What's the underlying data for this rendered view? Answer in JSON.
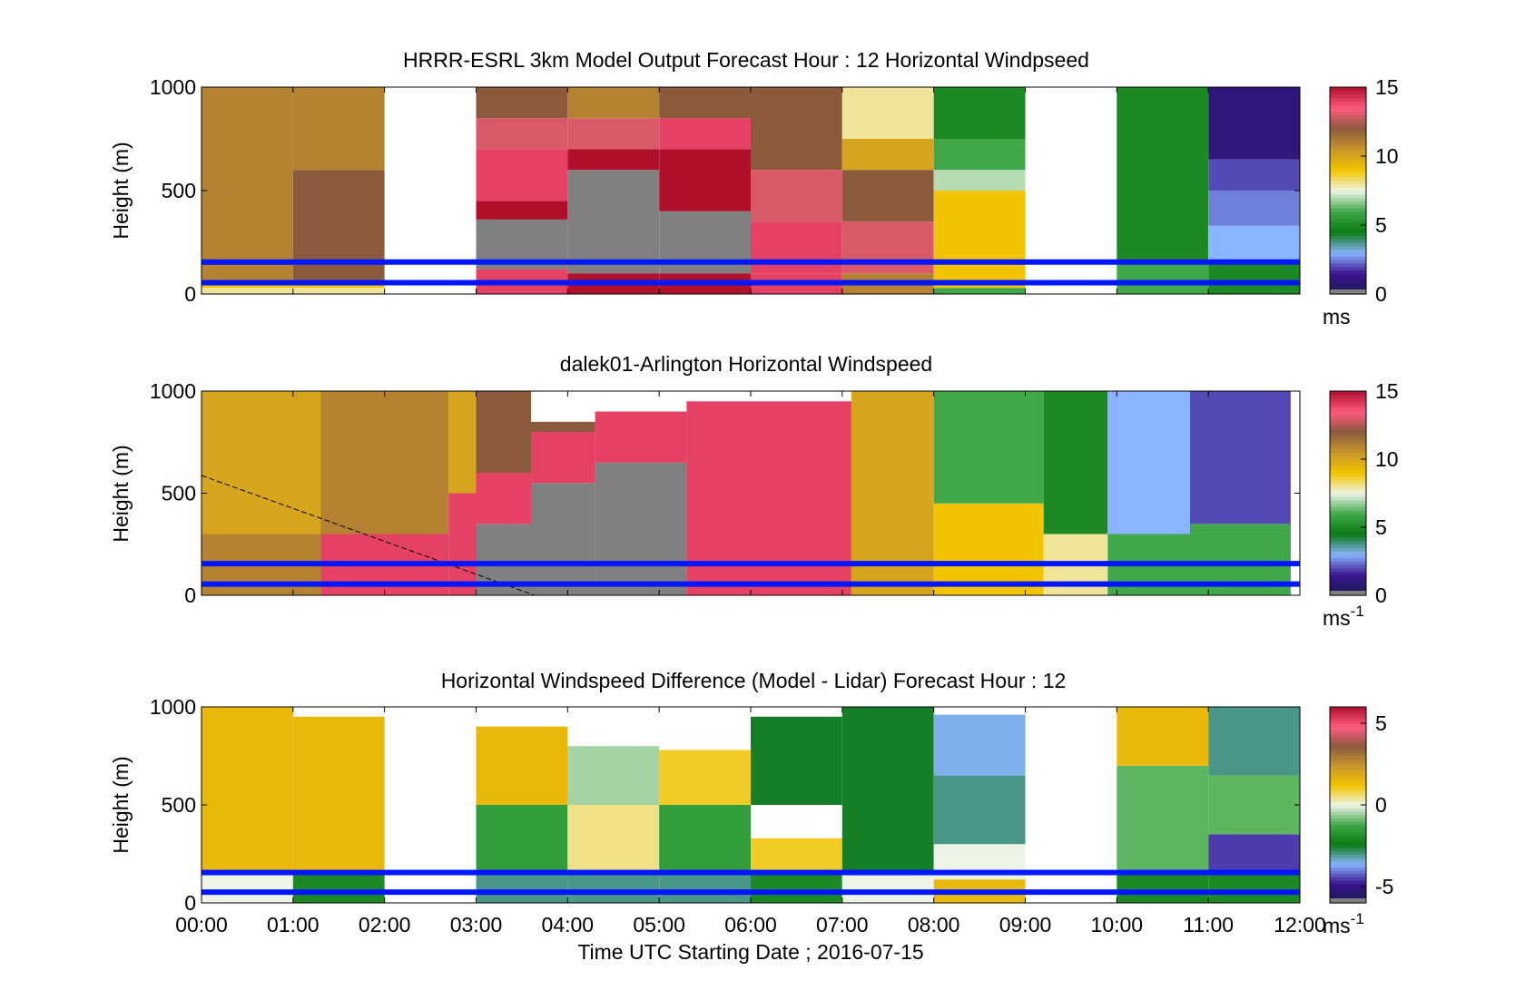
{
  "figure": {
    "xlabel": "Time UTC  Starting Date ; 2016-07-15",
    "x_ticks": [
      "00:00",
      "01:00",
      "02:00",
      "03:00",
      "04:00",
      "05:00",
      "06:00",
      "07:00",
      "08:00",
      "09:00",
      "10:00",
      "11:00",
      "12:00"
    ]
  },
  "colors": {
    "reference_line": "#0016ff",
    "gray": "#808080",
    "colormap_stops": [
      "#1a1a50",
      "#3a1490",
      "#8ab4ff",
      "#0a7a14",
      "#40a848",
      "#eef4e6",
      "#f2c400",
      "#c8962c",
      "#8b5a3c",
      "#ff5a80",
      "#b0102c"
    ]
  },
  "chart_data": [
    {
      "type": "heatmap",
      "title": "HRRR-ESRL 3km Model Output   Forecast Hour : 12 Horizontal Windpseed",
      "ylabel": "Height (m)",
      "ylim": [
        0,
        1000
      ],
      "y_ticks": [
        "0",
        "500",
        "1000"
      ],
      "colorbar": {
        "range": [
          0,
          15
        ],
        "ticks": [
          "0",
          "5",
          "10",
          "15"
        ],
        "unit": "ms"
      },
      "reference_lines_m": [
        55,
        155
      ],
      "x_hours": [
        0,
        1,
        2,
        3,
        4,
        5,
        6,
        7,
        8,
        9,
        10,
        11,
        12
      ],
      "columns": [
        {
          "start": 0,
          "end": 1,
          "segments": [
            [
              0,
              30,
              8
            ],
            [
              30,
              60,
              9
            ],
            [
              60,
              1000,
              11
            ]
          ]
        },
        {
          "start": 1,
          "end": 2,
          "segments": [
            [
              0,
              30,
              8
            ],
            [
              30,
              60,
              9
            ],
            [
              60,
              600,
              12
            ],
            [
              600,
              1000,
              11
            ]
          ]
        },
        {
          "start": 3,
          "end": 4,
          "segments": [
            [
              0,
              120,
              14
            ],
            [
              120,
              360,
              "gray"
            ],
            [
              360,
              450,
              15
            ],
            [
              450,
              700,
              14
            ],
            [
              700,
              850,
              13
            ],
            [
              850,
              1000,
              12
            ]
          ]
        },
        {
          "start": 4,
          "end": 5,
          "segments": [
            [
              0,
              100,
              15
            ],
            [
              100,
              600,
              "gray"
            ],
            [
              600,
              700,
              15
            ],
            [
              700,
              850,
              13
            ],
            [
              850,
              1000,
              11
            ]
          ]
        },
        {
          "start": 5,
          "end": 6,
          "segments": [
            [
              0,
              100,
              15
            ],
            [
              100,
              400,
              "gray"
            ],
            [
              400,
              700,
              15
            ],
            [
              700,
              850,
              14
            ],
            [
              850,
              1000,
              12
            ]
          ]
        },
        {
          "start": 6,
          "end": 7,
          "segments": [
            [
              0,
              100,
              14
            ],
            [
              100,
              350,
              14
            ],
            [
              350,
              600,
              13
            ],
            [
              600,
              1000,
              12
            ]
          ]
        },
        {
          "start": 7,
          "end": 8,
          "segments": [
            [
              0,
              100,
              11
            ],
            [
              100,
              350,
              13
            ],
            [
              350,
              600,
              12
            ],
            [
              600,
              750,
              10
            ],
            [
              750,
              1000,
              8
            ]
          ]
        },
        {
          "start": 8,
          "end": 9,
          "segments": [
            [
              0,
              30,
              6
            ],
            [
              30,
              150,
              9
            ],
            [
              150,
              500,
              9
            ],
            [
              500,
              600,
              7
            ],
            [
              600,
              750,
              6
            ],
            [
              750,
              1000,
              5
            ]
          ]
        },
        {
          "start": 10,
          "end": 11,
          "segments": [
            [
              0,
              150,
              6
            ],
            [
              150,
              1000,
              5
            ]
          ]
        },
        {
          "start": 11,
          "end": 12,
          "segments": [
            [
              0,
              150,
              5
            ],
            [
              150,
              330,
              3
            ],
            [
              330,
              500,
              2.5
            ],
            [
              500,
              650,
              2
            ],
            [
              650,
              1000,
              1
            ]
          ]
        }
      ]
    },
    {
      "type": "heatmap",
      "title": "dalek01-Arlington  Horizontal Windspeed",
      "ylabel": "Height (m)",
      "ylim": [
        0,
        1000
      ],
      "y_ticks": [
        "0",
        "500",
        "1000"
      ],
      "colorbar": {
        "range": [
          0,
          15
        ],
        "ticks": [
          "0",
          "5",
          "10",
          "15"
        ],
        "unit": "ms",
        "unit_sup": "-1"
      },
      "reference_lines_m": [
        55,
        155
      ],
      "x_hours": [
        0,
        1,
        2,
        3,
        4,
        5,
        6,
        7,
        8,
        9,
        10,
        11,
        12
      ],
      "columns": [
        {
          "start": 0,
          "end": 1.3,
          "segments": [
            [
              0,
              300,
              11
            ],
            [
              300,
              1000,
              10
            ]
          ]
        },
        {
          "start": 1.3,
          "end": 2.7,
          "segments": [
            [
              0,
              300,
              14
            ],
            [
              300,
              1000,
              11
            ]
          ]
        },
        {
          "start": 2.7,
          "end": 3.0,
          "segments": [
            [
              0,
              500,
              14
            ],
            [
              500,
              1000,
              10
            ]
          ]
        },
        {
          "start": 3.0,
          "end": 3.6,
          "segments": [
            [
              0,
              350,
              "gray"
            ],
            [
              350,
              600,
              14
            ],
            [
              600,
              1000,
              12
            ]
          ]
        },
        {
          "start": 3.6,
          "end": 4.3,
          "segments": [
            [
              0,
              550,
              "gray"
            ],
            [
              550,
              800,
              14
            ],
            [
              800,
              850,
              12
            ]
          ]
        },
        {
          "start": 4.3,
          "end": 5.3,
          "segments": [
            [
              0,
              650,
              "gray"
            ],
            [
              650,
              900,
              14
            ]
          ]
        },
        {
          "start": 5.3,
          "end": 7.1,
          "segments": [
            [
              0,
              950,
              14
            ]
          ]
        },
        {
          "start": 7.1,
          "end": 8.0,
          "segments": [
            [
              0,
              1000,
              10
            ]
          ]
        },
        {
          "start": 8.0,
          "end": 9.2,
          "segments": [
            [
              0,
              450,
              9
            ],
            [
              450,
              1000,
              6
            ]
          ]
        },
        {
          "start": 9.2,
          "end": 9.9,
          "segments": [
            [
              0,
              300,
              8
            ],
            [
              300,
              1000,
              5
            ]
          ]
        },
        {
          "start": 9.9,
          "end": 10.8,
          "segments": [
            [
              0,
              300,
              6
            ],
            [
              300,
              1000,
              3
            ]
          ]
        },
        {
          "start": 10.8,
          "end": 11.9,
          "segments": [
            [
              0,
              350,
              6
            ],
            [
              350,
              1000,
              2
            ]
          ]
        }
      ]
    },
    {
      "type": "heatmap",
      "title": "Horizontal Windspeed Difference (Model - Lidar) Forecast Hour : 12",
      "ylabel": "Height (m)",
      "ylim": [
        0,
        1000
      ],
      "y_ticks": [
        "0",
        "500",
        "1000"
      ],
      "colorbar": {
        "range": [
          -6,
          6
        ],
        "ticks": [
          "-5",
          "0",
          "5"
        ],
        "unit": "ms",
        "unit_sup": "-1"
      },
      "reference_lines_m": [
        55,
        155
      ],
      "x_hours": [
        0,
        1,
        2,
        3,
        4,
        5,
        6,
        7,
        8,
        9,
        10,
        11,
        12
      ],
      "columns": [
        {
          "start": 0,
          "end": 1,
          "segments": [
            [
              0,
              150,
              0
            ],
            [
              150,
              1000,
              1.5
            ]
          ]
        },
        {
          "start": 1,
          "end": 2,
          "segments": [
            [
              0,
              150,
              -2
            ],
            [
              150,
              950,
              1.5
            ]
          ]
        },
        {
          "start": 3,
          "end": 4,
          "segments": [
            [
              0,
              150,
              -3
            ],
            [
              150,
              500,
              -1.5
            ],
            [
              500,
              900,
              1.5
            ]
          ]
        },
        {
          "start": 4,
          "end": 5,
          "segments": [
            [
              0,
              150,
              -3
            ],
            [
              150,
              500,
              0.5
            ],
            [
              500,
              800,
              -0.5
            ]
          ]
        },
        {
          "start": 5,
          "end": 6,
          "segments": [
            [
              0,
              150,
              -3
            ],
            [
              150,
              500,
              -1.5
            ],
            [
              500,
              780,
              1
            ]
          ]
        },
        {
          "start": 6,
          "end": 7,
          "segments": [
            [
              0,
              150,
              -2
            ],
            [
              150,
              330,
              1
            ],
            [
              500,
              950,
              -2.5
            ]
          ]
        },
        {
          "start": 7,
          "end": 8,
          "segments": [
            [
              0,
              150,
              0
            ],
            [
              150,
              1000,
              -2.5
            ]
          ]
        },
        {
          "start": 8,
          "end": 9,
          "segments": [
            [
              0,
              120,
              1.5
            ],
            [
              120,
              300,
              0
            ],
            [
              300,
              650,
              -3
            ],
            [
              650,
              960,
              -3.5
            ]
          ]
        },
        {
          "start": 10,
          "end": 11,
          "segments": [
            [
              0,
              150,
              -2
            ],
            [
              150,
              700,
              -1
            ],
            [
              700,
              1000,
              1.5
            ]
          ]
        },
        {
          "start": 11,
          "end": 12,
          "segments": [
            [
              0,
              150,
              -2
            ],
            [
              150,
              350,
              -4.5
            ],
            [
              350,
              650,
              -1
            ],
            [
              650,
              1000,
              -3
            ]
          ]
        }
      ]
    }
  ]
}
